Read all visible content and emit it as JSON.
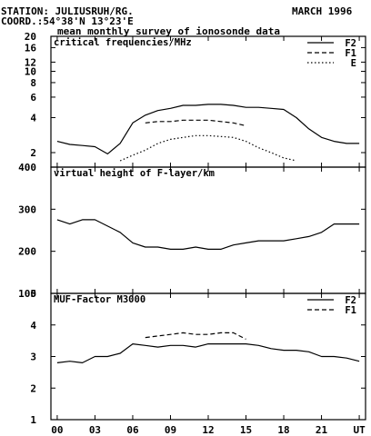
{
  "header": {
    "station": "STATION: JULIUSRUH/RG.",
    "date": "MARCH 1996",
    "coord": "COORD.:54°38'N 13°23'E",
    "subtitle": "mean monthly survey of ionosonde data"
  },
  "x_axis": {
    "ticks": [
      0,
      3,
      6,
      9,
      12,
      15,
      18,
      21,
      24
    ],
    "tick_labels": [
      "00",
      "03",
      "06",
      "09",
      "12",
      "15",
      "18",
      "21",
      "UT"
    ]
  },
  "chart_data": [
    {
      "type": "line",
      "title": "critical frequencies/MHz",
      "scale": "log",
      "ylim": [
        1.5,
        20
      ],
      "yticks": [
        2,
        4,
        6,
        8,
        10,
        12,
        16,
        20
      ],
      "legend_position": "top-right",
      "series": [
        {
          "name": "F2",
          "style": "solid",
          "x": [
            0,
            1,
            2,
            3,
            4,
            5,
            6,
            7,
            8,
            9,
            10,
            11,
            12,
            13,
            14,
            15,
            16,
            17,
            18,
            19,
            20,
            21,
            22,
            23,
            24
          ],
          "y": [
            2.5,
            2.35,
            2.3,
            2.25,
            1.95,
            2.4,
            3.6,
            4.2,
            4.6,
            4.8,
            5.1,
            5.1,
            5.2,
            5.2,
            5.1,
            4.9,
            4.9,
            4.8,
            4.7,
            4.0,
            3.2,
            2.7,
            2.5,
            2.4,
            2.4
          ]
        },
        {
          "name": "F1",
          "style": "dashed",
          "x": [
            7,
            8,
            9,
            10,
            11,
            12,
            13,
            14,
            15
          ],
          "y": [
            3.6,
            3.7,
            3.7,
            3.8,
            3.8,
            3.8,
            3.7,
            3.6,
            3.4
          ]
        },
        {
          "name": "E",
          "style": "dotted",
          "x": [
            5,
            6,
            7,
            8,
            9,
            10,
            11,
            12,
            13,
            14,
            15,
            16,
            17,
            18,
            19
          ],
          "y": [
            1.7,
            1.9,
            2.1,
            2.4,
            2.6,
            2.7,
            2.8,
            2.8,
            2.75,
            2.7,
            2.5,
            2.2,
            2.0,
            1.8,
            1.7
          ]
        }
      ]
    },
    {
      "type": "line",
      "title": "virtual height of F-layer/km",
      "ylim": [
        100,
        400
      ],
      "yticks": [
        100,
        200,
        300,
        400
      ],
      "series": [
        {
          "style": "solid",
          "x": [
            0,
            1,
            2,
            3,
            4,
            5,
            6,
            7,
            8,
            9,
            10,
            11,
            12,
            13,
            14,
            15,
            16,
            17,
            18,
            19,
            20,
            21,
            22,
            23,
            24
          ],
          "y": [
            275,
            265,
            275,
            275,
            260,
            245,
            220,
            210,
            210,
            205,
            205,
            210,
            205,
            205,
            215,
            220,
            225,
            225,
            225,
            230,
            235,
            245,
            265,
            265,
            265
          ]
        }
      ]
    },
    {
      "type": "line",
      "title": "MUF-Factor M3000",
      "ylim": [
        1,
        5
      ],
      "yticks": [
        1,
        2,
        3,
        4,
        5
      ],
      "legend_position": "top-right",
      "series": [
        {
          "name": "F2",
          "style": "solid",
          "x": [
            0,
            1,
            2,
            3,
            4,
            5,
            6,
            7,
            8,
            9,
            10,
            11,
            12,
            13,
            14,
            15,
            16,
            17,
            18,
            19,
            20,
            21,
            22,
            23,
            24
          ],
          "y": [
            2.8,
            2.85,
            2.8,
            3.0,
            3.0,
            3.1,
            3.4,
            3.35,
            3.3,
            3.35,
            3.35,
            3.3,
            3.4,
            3.4,
            3.4,
            3.4,
            3.35,
            3.25,
            3.2,
            3.2,
            3.15,
            3.0,
            3.0,
            2.95,
            2.85
          ]
        },
        {
          "name": "F1",
          "style": "dashed",
          "x": [
            7,
            8,
            9,
            10,
            11,
            12,
            13,
            14,
            15
          ],
          "y": [
            3.6,
            3.65,
            3.7,
            3.75,
            3.7,
            3.7,
            3.75,
            3.75,
            3.55
          ]
        }
      ]
    }
  ]
}
